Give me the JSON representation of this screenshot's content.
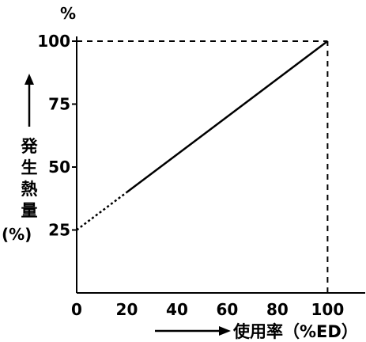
{
  "chart_data": {
    "type": "line",
    "x_unit_label": "使用率（%ED）",
    "y_unit_label": "%",
    "y_axis_label_chars": [
      "発",
      "生",
      "熱",
      "量"
    ],
    "y_axis_label_unit": "(%)",
    "xlim": [
      0,
      115
    ],
    "ylim": [
      0,
      100
    ],
    "x_ticks": [
      0,
      20,
      40,
      60,
      80,
      100
    ],
    "y_ticks": [
      25,
      50,
      75,
      100
    ],
    "x_tick_labels": [
      "0",
      "20",
      "40",
      "60",
      "80",
      "100"
    ],
    "y_tick_labels": [
      "25",
      "50",
      "75",
      "100"
    ],
    "grid": false,
    "series": [
      {
        "style": "dotted",
        "x": [
          0,
          20
        ],
        "y": [
          25,
          40
        ]
      },
      {
        "style": "solid",
        "x": [
          20,
          100
        ],
        "y": [
          40,
          100
        ]
      }
    ],
    "reference_lines": [
      {
        "style": "dashed",
        "x": [
          0,
          100
        ],
        "y": [
          100,
          100
        ]
      },
      {
        "style": "dashed",
        "x": [
          100,
          100
        ],
        "y": [
          0,
          100
        ]
      }
    ]
  }
}
